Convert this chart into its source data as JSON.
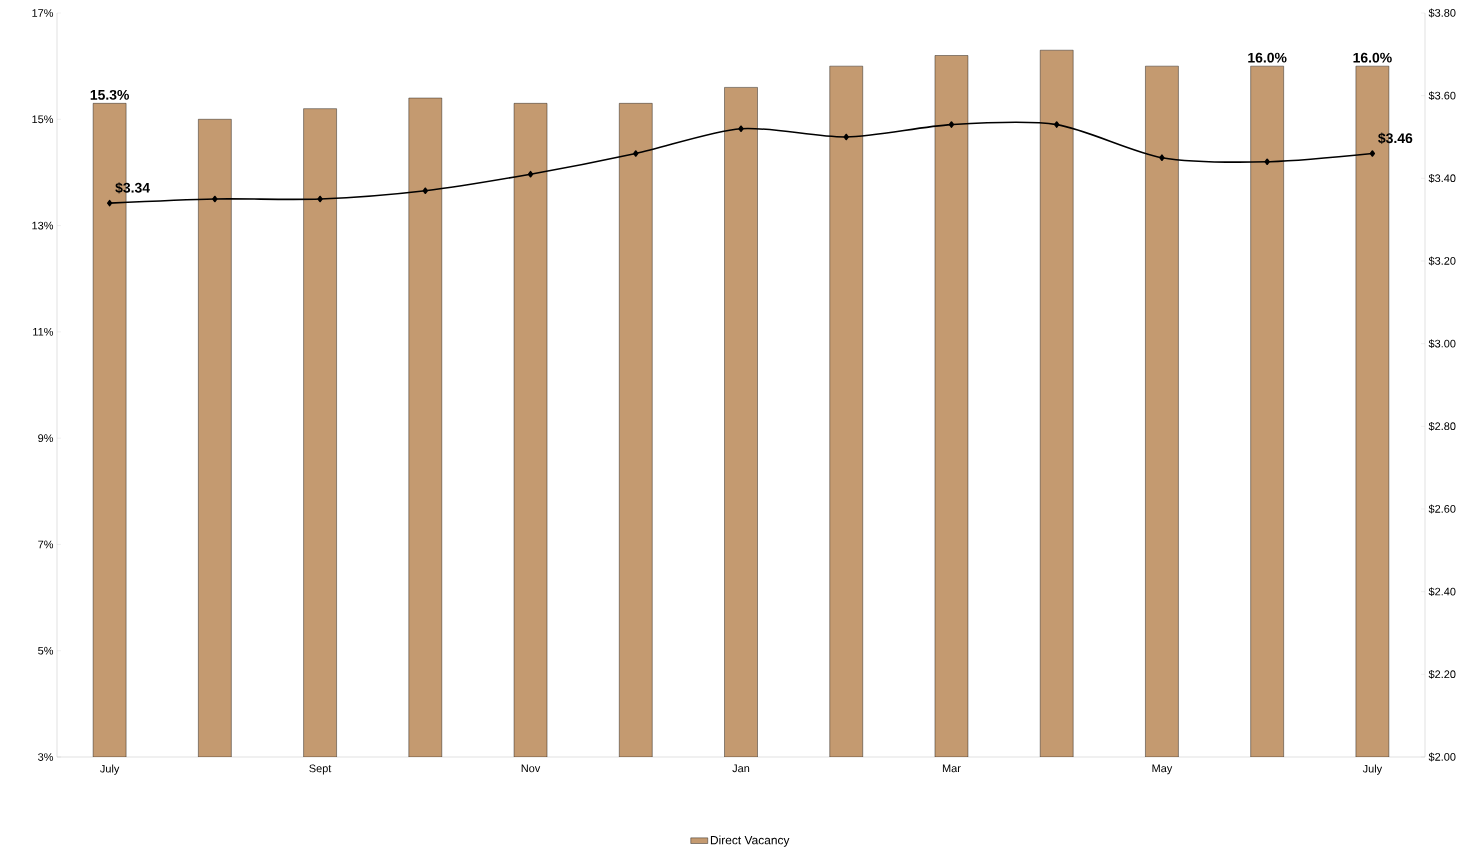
{
  "chart_data": {
    "type": "bar",
    "categories": [
      "July",
      null,
      "Sept",
      null,
      "Nov",
      null,
      "Jan",
      null,
      "Mar",
      null,
      "May",
      null,
      "July"
    ],
    "series": [
      {
        "name": "Direct Vacancy",
        "color": "#c49a70",
        "values": [
          15.3,
          15.0,
          15.2,
          15.4,
          15.3,
          15.3,
          15.6,
          16.0,
          16.2,
          16.3,
          16.0,
          16.0,
          16.0
        ],
        "value_labels": [
          "15.3%",
          null,
          null,
          null,
          null,
          null,
          null,
          null,
          null,
          null,
          null,
          "16.0%",
          "16.0%"
        ]
      },
      {
        "type": "line",
        "axis": "y2",
        "color": "#000000",
        "values": [
          3.34,
          3.35,
          3.35,
          3.37,
          3.41,
          3.46,
          3.52,
          3.5,
          3.53,
          3.53,
          3.45,
          3.44,
          3.46
        ],
        "value_labels": [
          "$3.34",
          null,
          null,
          null,
          null,
          null,
          null,
          null,
          null,
          null,
          null,
          null,
          "$3.46"
        ]
      }
    ],
    "ylim": [
      3,
      17
    ],
    "yticks": [
      {
        "value": 3,
        "label": "3%"
      },
      {
        "value": 5,
        "label": "5%"
      },
      {
        "value": 7,
        "label": "7%"
      },
      {
        "value": 9,
        "label": "9%"
      },
      {
        "value": 11,
        "label": "11%"
      },
      {
        "value": 13,
        "label": "13%"
      },
      {
        "value": 15,
        "label": "15%"
      },
      {
        "value": 17,
        "label": "17%"
      }
    ],
    "y2lim": [
      2,
      3.8
    ],
    "y2ticks": [
      {
        "value": 2,
        "label": "$2.00"
      },
      {
        "value": 2.2,
        "label": "$2.20"
      },
      {
        "value": 2.4,
        "label": "$2.40"
      },
      {
        "value": 2.6,
        "label": "$2.60"
      },
      {
        "value": 2.8,
        "label": "$2.80"
      },
      {
        "value": 3.0,
        "label": "$3.00"
      },
      {
        "value": 3.2,
        "label": "$3.20"
      },
      {
        "value": 3.4,
        "label": "$3.40"
      },
      {
        "value": 3.6,
        "label": "$3.60"
      },
      {
        "value": 3.8,
        "label": "$3.80"
      }
    ],
    "marker": "diamond",
    "line_style": "solid",
    "legend": "bottom",
    "grid": false
  }
}
